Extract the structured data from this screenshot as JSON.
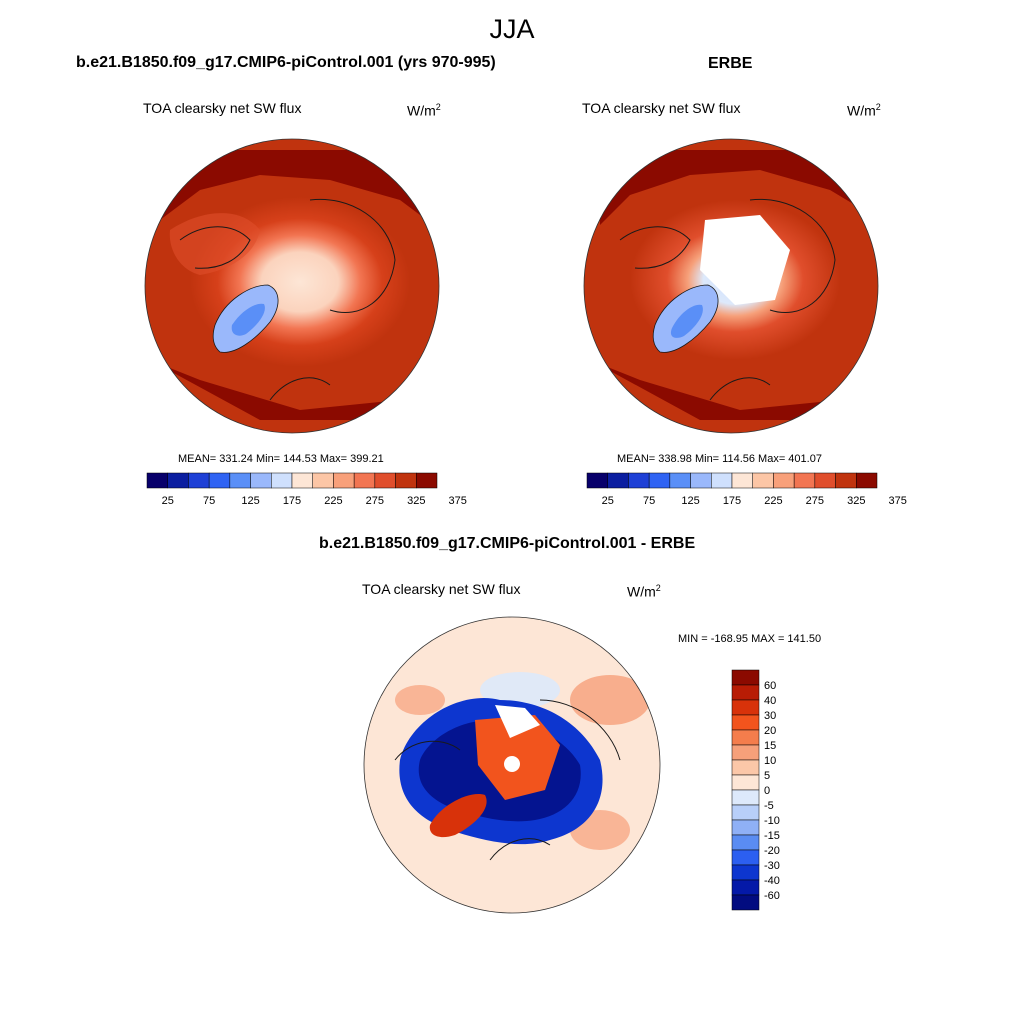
{
  "figure": {
    "title": "JJA",
    "colors": {
      "ocean_warm": "#c0330e",
      "deep_red": "#8b0a00",
      "coast": "#1a1a1a"
    }
  },
  "panels": [
    {
      "title": "b.e21.B1850.f09_g17.CMIP6-piControl.001 (yrs 970-995)",
      "variable": "TOA clearsky net SW flux",
      "units_base": "W/m",
      "units_exp": "2",
      "stats": "MEAN= 331.24  Min= 144.53  Max= 399.21"
    },
    {
      "title": "ERBE",
      "variable": "TOA clearsky net SW flux",
      "units_base": "W/m",
      "units_exp": "2",
      "stats": "MEAN= 338.98  Min= 114.56  Max= 401.07"
    },
    {
      "title": "b.e21.B1850.f09_g17.CMIP6-piControl.001 - ERBE",
      "variable": "TOA clearsky net SW flux",
      "units_base": "W/m",
      "units_exp": "2",
      "stats": "MIN = -168.95 MAX = 141.50"
    }
  ],
  "chart_data": [
    {
      "type": "heatmap",
      "projection": "north polar stereographic",
      "title": "b.e21.B1850.f09_g17.CMIP6-piControl.001 (yrs 970-995)",
      "variable": "TOA clearsky net SW flux",
      "units": "W/m2",
      "mean": 331.24,
      "min": 144.53,
      "max": 399.21,
      "colorbar": {
        "orientation": "horizontal",
        "tick_labels": [
          "25",
          "75",
          "125",
          "175",
          "225",
          "275",
          "325",
          "375"
        ],
        "colors": [
          "#08006b",
          "#0b1ea0",
          "#1e40d6",
          "#2f63f3",
          "#5a8ff7",
          "#9ab8fb",
          "#cfe0fd",
          "#fde6d6",
          "#fcc6a6",
          "#f8a07a",
          "#f27552",
          "#e04e2c",
          "#c0330e",
          "#8b0a00"
        ]
      }
    },
    {
      "type": "heatmap",
      "projection": "north polar stereographic",
      "title": "ERBE",
      "variable": "TOA clearsky net SW flux",
      "units": "W/m2",
      "mean": 338.98,
      "min": 114.56,
      "max": 401.07,
      "colorbar": {
        "orientation": "horizontal",
        "tick_labels": [
          "25",
          "75",
          "125",
          "175",
          "225",
          "275",
          "325",
          "375"
        ],
        "colors": [
          "#08006b",
          "#0b1ea0",
          "#1e40d6",
          "#2f63f3",
          "#5a8ff7",
          "#9ab8fb",
          "#cfe0fd",
          "#fde6d6",
          "#fcc6a6",
          "#f8a07a",
          "#f27552",
          "#e04e2c",
          "#c0330e",
          "#8b0a00"
        ]
      }
    },
    {
      "type": "heatmap",
      "projection": "north polar stereographic",
      "title": "b.e21.B1850.f09_g17.CMIP6-piControl.001 - ERBE",
      "variable": "TOA clearsky net SW flux",
      "units": "W/m2",
      "min": -168.95,
      "max": 141.5,
      "colorbar": {
        "orientation": "vertical",
        "tick_labels": [
          "60",
          "40",
          "30",
          "20",
          "15",
          "10",
          "5",
          "0",
          "-5",
          "-10",
          "-15",
          "-20",
          "-30",
          "-40",
          "-60"
        ],
        "colors": [
          "#8b0a00",
          "#b81c05",
          "#d8320a",
          "#f2541d",
          "#f47d4c",
          "#f6a07a",
          "#fbc7a8",
          "#fde6d6",
          "#dde9fb",
          "#b8cff9",
          "#8fb0f6",
          "#5a8cf2",
          "#2c5ff0",
          "#0d36cf",
          "#0419a8",
          "#020c80"
        ]
      }
    }
  ]
}
